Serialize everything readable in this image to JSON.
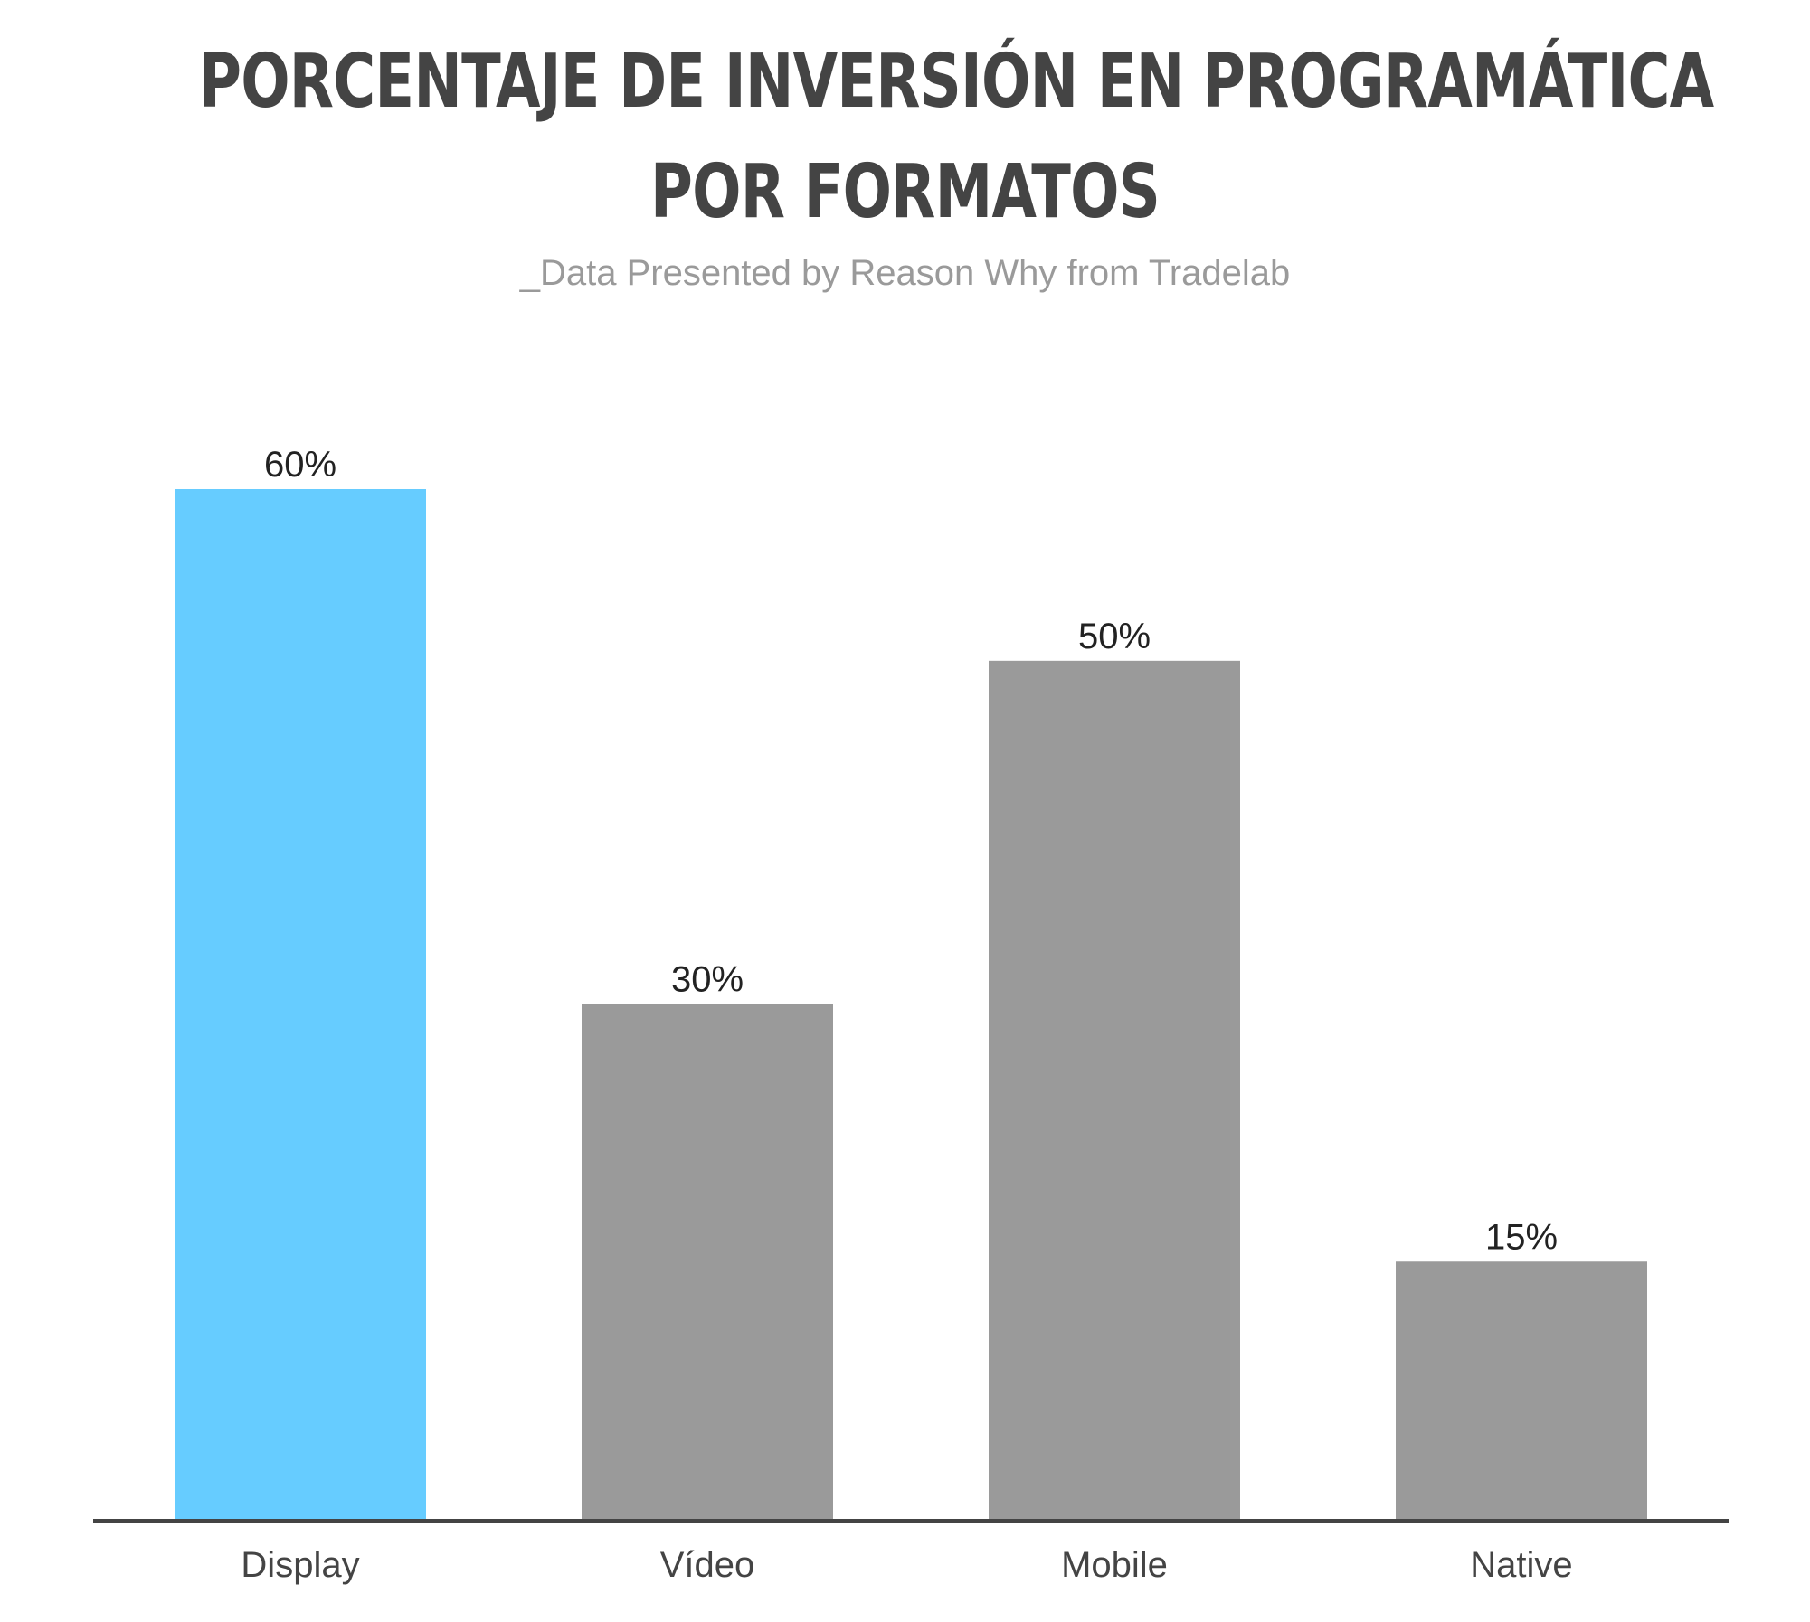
{
  "chart_data": {
    "type": "bar",
    "title_lines": [
      "PORCENTAJE DE INVERSIÓN EN PROGRAMÁTICA",
      "POR FORMATOS"
    ],
    "subtitle": "_Data Presented by Reason Why from Tradelab",
    "categories": [
      "Display",
      "Vídeo",
      "Mobile",
      "Native"
    ],
    "values": [
      60,
      30,
      50,
      15
    ],
    "value_labels": [
      "60%",
      "30%",
      "50%",
      "15%"
    ],
    "highlight_index": 0,
    "ylim": [
      0,
      60
    ],
    "grid": false,
    "legend": "none"
  },
  "colors": {
    "highlight": "#66ccff",
    "bar": "#9a9a9a",
    "axis": "#444444"
  }
}
